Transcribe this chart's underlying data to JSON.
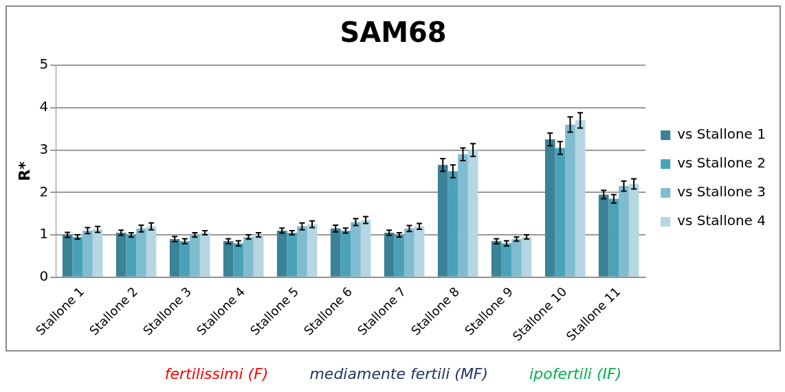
{
  "chart_data": {
    "type": "bar",
    "title": "SAM68",
    "ylabel": "R*",
    "categories": [
      "Stallone 1",
      "Stallone 2",
      "Stallone 3",
      "Stallone 4",
      "Stallone 5",
      "Stallone 6",
      "Stallone 7",
      "Stallone 8",
      "Stallone 9",
      "Stallone 10",
      "Stallone 11"
    ],
    "series": [
      {
        "name": "vs Stallone 1",
        "color": "#3a8296",
        "values": [
          1.0,
          1.05,
          0.9,
          0.85,
          1.1,
          1.15,
          1.05,
          2.65,
          0.85,
          3.25,
          1.95
        ],
        "errors": [
          0.06,
          0.06,
          0.06,
          0.06,
          0.06,
          0.08,
          0.06,
          0.15,
          0.06,
          0.15,
          0.1
        ]
      },
      {
        "name": "vs Stallone 2",
        "color": "#4aa2b8",
        "values": [
          0.95,
          1.0,
          0.85,
          0.8,
          1.05,
          1.1,
          1.0,
          2.5,
          0.8,
          3.05,
          1.85
        ],
        "errors": [
          0.05,
          0.05,
          0.06,
          0.06,
          0.05,
          0.06,
          0.05,
          0.15,
          0.06,
          0.15,
          0.1
        ]
      },
      {
        "name": "vs Stallone 3",
        "color": "#7fbcd0",
        "values": [
          1.1,
          1.15,
          1.0,
          0.95,
          1.2,
          1.3,
          1.15,
          2.9,
          0.9,
          3.6,
          2.15
        ],
        "errors": [
          0.07,
          0.08,
          0.05,
          0.05,
          0.08,
          0.08,
          0.07,
          0.15,
          0.05,
          0.18,
          0.12
        ]
      },
      {
        "name": "vs Stallone 4",
        "color": "#b5d6e2",
        "values": [
          1.13,
          1.2,
          1.05,
          1.0,
          1.25,
          1.35,
          1.2,
          3.0,
          0.95,
          3.7,
          2.2
        ],
        "errors": [
          0.07,
          0.08,
          0.05,
          0.05,
          0.08,
          0.08,
          0.07,
          0.15,
          0.05,
          0.18,
          0.12
        ]
      }
    ],
    "ylim": [
      0,
      5
    ],
    "yticks": [
      0,
      1,
      2,
      3,
      4,
      5
    ],
    "grid": "y",
    "legend": "right",
    "annotations": [
      "fertilissimi (F)",
      "mediamente fertili (MF)",
      "ipofertili (IF)"
    ]
  }
}
